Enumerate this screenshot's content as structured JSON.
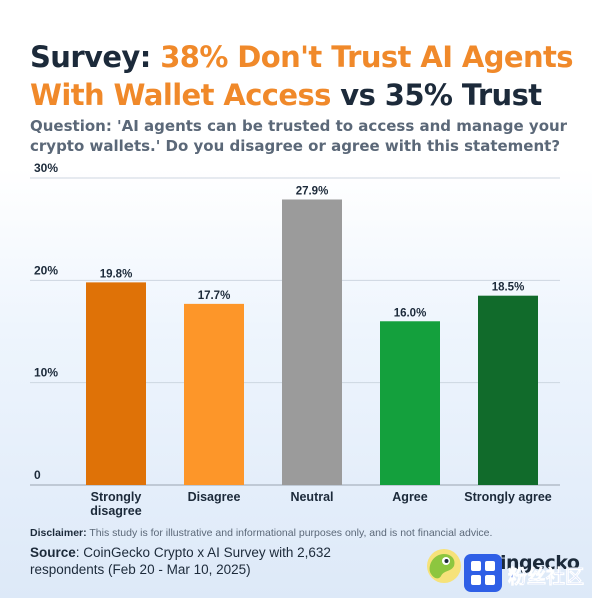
{
  "header": {
    "title_part1": "Survey: ",
    "title_part2": "38% Don't Trust AI Agents With Wallet Access",
    "title_part3": " vs 35% Trust",
    "question": "Question: 'AI agents can be trusted to access and manage your crypto wallets.' Do you disagree or agree with this statement?"
  },
  "chart_data": {
    "type": "bar",
    "categories": [
      "Strongly disagree",
      "Disagree",
      "Neutral",
      "Agree",
      "Strongly agree"
    ],
    "values": [
      19.8,
      17.7,
      27.9,
      16.0,
      18.5
    ],
    "value_labels": [
      "19.8%",
      "17.7%",
      "27.9%",
      "16.0%",
      "18.5%"
    ],
    "colors": [
      "#df7207",
      "#fd9629",
      "#9b9b9b",
      "#14a03d",
      "#116b2b"
    ],
    "yticks": [
      0,
      10,
      20,
      30
    ],
    "ytick_labels": [
      "0",
      "10%",
      "20%",
      "30%"
    ],
    "ylim": [
      0,
      30
    ],
    "grid": true
  },
  "footer": {
    "disclaimer_label": "Disclaimer:",
    "disclaimer_text": " This study is for illustrative and informational purposes only, and is not financial advice.",
    "source_label": "Source",
    "source_text": ": CoinGecko Crypto x AI Survey with 2,632 respondents (Feb 20 - Mar 10, 2025)",
    "logo_text": "ingecko",
    "watermark_text": "粉丝社区"
  },
  "colors": {
    "accent_orange": "#f0892a",
    "title_dark": "#1c2a3a",
    "logo_green": "#8dc63f",
    "watermark_blue": "#2f5fe6"
  }
}
